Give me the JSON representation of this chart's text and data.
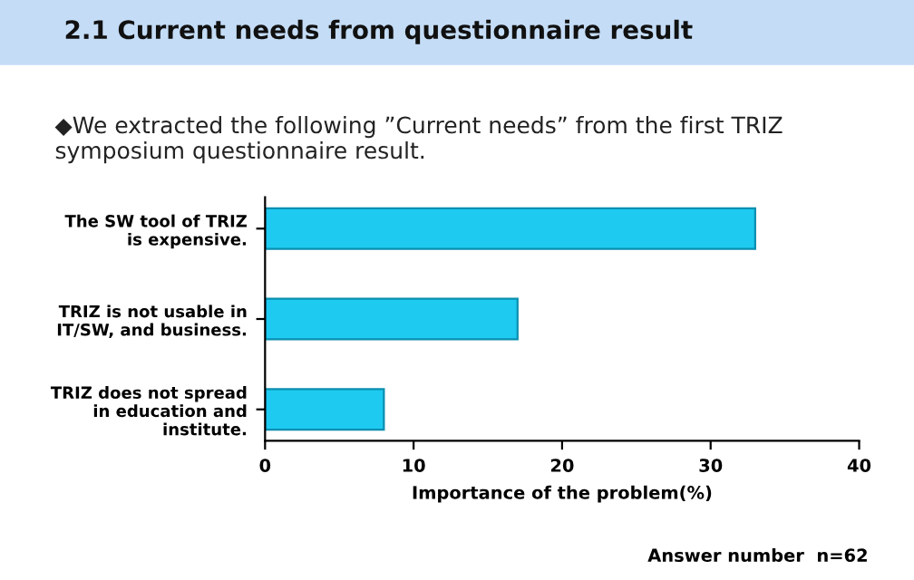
{
  "chart_data": {
    "type": "bar",
    "orientation": "horizontal",
    "title": "2.1 Current needs from questionnaire result",
    "subtitle": "◆We extracted the following ”Current needs” from the first TRIZ symposium questionnaire result.",
    "categories": [
      "The SW tool of TRIZ\nis expensive.",
      "TRIZ is not usable in\nIT/SW, and business.",
      "TRIZ does not spread\nin education and\ninstitute."
    ],
    "values": [
      33,
      17,
      8
    ],
    "color": "#1ecaf0",
    "xlim": [
      0,
      40
    ],
    "xticks": [
      0,
      10,
      20,
      30,
      40
    ],
    "xlabel": "Importance of the problem(%)",
    "annotations": [
      "Answer number  n=62"
    ],
    "grid": false
  }
}
